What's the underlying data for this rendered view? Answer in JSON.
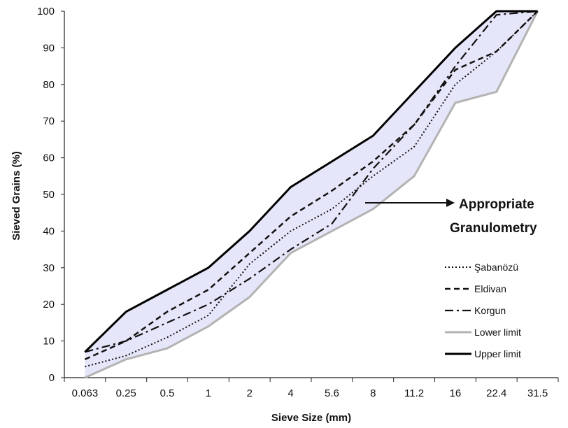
{
  "chart_data": {
    "type": "line",
    "xlabel": "Sieve Size (mm)",
    "ylabel": "Sieved Grains (%)",
    "ylim": [
      0,
      100
    ],
    "yticks": [
      0,
      10,
      20,
      30,
      40,
      50,
      60,
      70,
      80,
      90,
      100
    ],
    "categories": [
      "0.063",
      "0.25",
      "0.5",
      "1",
      "2",
      "4",
      "5.6",
      "8",
      "11.2",
      "16",
      "22.4",
      "31.5"
    ],
    "grid": false,
    "legend_position": "bottom-right",
    "series": [
      {
        "name": "Şabanözü",
        "style": "dotted",
        "color": "#111111",
        "values": [
          3,
          6,
          11,
          17,
          31,
          40,
          46,
          55,
          63,
          80,
          89,
          100
        ]
      },
      {
        "name": "Eldivan",
        "style": "dashed",
        "color": "#111111",
        "values": [
          5,
          10,
          18,
          24,
          34,
          44,
          51,
          59,
          69,
          84,
          89,
          100
        ]
      },
      {
        "name": "Korgun",
        "style": "dash-dot",
        "color": "#111111",
        "values": [
          7,
          10,
          15,
          20,
          27,
          35,
          42,
          57,
          69,
          85,
          99,
          100
        ]
      },
      {
        "name": "Lower limit",
        "style": "solid",
        "color": "#b3b3b3",
        "values": [
          0,
          5,
          8,
          14,
          22,
          34,
          40,
          46,
          55,
          75,
          78,
          100
        ]
      },
      {
        "name": "Upper limit",
        "style": "solid",
        "color": "#000000",
        "values": [
          7,
          18,
          24,
          30,
          40,
          52,
          59,
          66,
          78,
          90,
          100,
          100
        ]
      }
    ],
    "band": {
      "between": [
        "Lower limit",
        "Upper limit"
      ],
      "color": "#e6e6fa"
    },
    "annotation": {
      "lines": [
        "Appropriate",
        "Granulometry"
      ],
      "arrow": true
    }
  }
}
